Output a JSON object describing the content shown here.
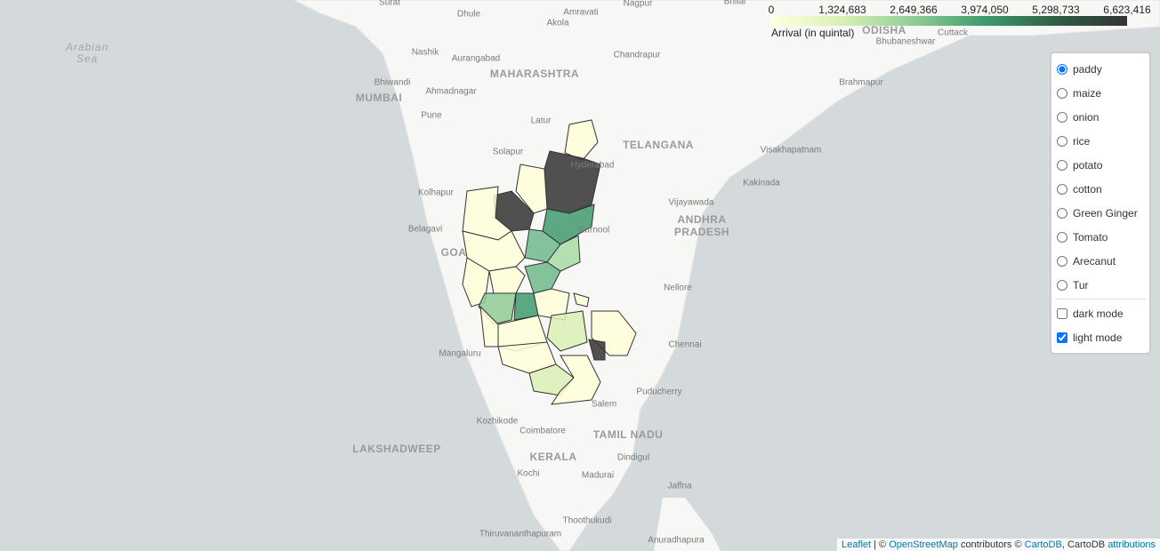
{
  "map": {
    "labels": [
      "Surat",
      "Dhule",
      "Amravati",
      "Nagpur",
      "Akola",
      "Bhilai",
      "Arabian",
      "Sea",
      "Nashik",
      "Aurangabad",
      "MAHARASHTRA",
      "Chandrapur",
      "ODISHA",
      "Cuttack",
      "Bhubaneshwar",
      "Bhiwandi",
      "MUMBAI",
      "Ahmadnagar",
      "Brahmapur",
      "Pune",
      "Latur",
      "TELANGANA",
      "Solapur",
      "Hyderabad",
      "Visakhapatnam",
      "Kolhapur",
      "Kakinada",
      "Vijayawada",
      "ANDHRA",
      "PRADESH",
      "Belagavi",
      "Kurnool",
      "GOA",
      "Nellore",
      "Chennai",
      "Mangaluru",
      "Puducherry",
      "Salem",
      "Kozhikode",
      "Coimbatore",
      "TAMIL NADU",
      "LAKSHADWEEP",
      "KERALA",
      "Dindigul",
      "Kochi",
      "Madurai",
      "Jaffna",
      "Thoothukudi",
      "Thiruvananthapuram",
      "Anuradhapura"
    ]
  },
  "legend": {
    "ticks": [
      "0",
      "1,324,683",
      "2,649,366",
      "3,974,050",
      "5,298,733",
      "6,623,416"
    ],
    "caption": "Arrival (in quintal)"
  },
  "layer_control": {
    "crops": [
      "paddy",
      "maize",
      "onion",
      "rice",
      "potato",
      "cotton",
      "Green Ginger",
      "Tomato",
      "Arecanut",
      "Tur"
    ],
    "selected_crop": 0,
    "modes": [
      {
        "label": "dark mode",
        "checked": false
      },
      {
        "label": "light mode",
        "checked": true
      }
    ]
  },
  "attribution": {
    "leaflet": "Leaflet",
    "sep1": "| ©",
    "osm": "OpenStreetMap",
    "sep2": "contributors ©",
    "cartodb": "CartoDB",
    "sep3": ", CartoDB",
    "attributions": "attributions"
  }
}
